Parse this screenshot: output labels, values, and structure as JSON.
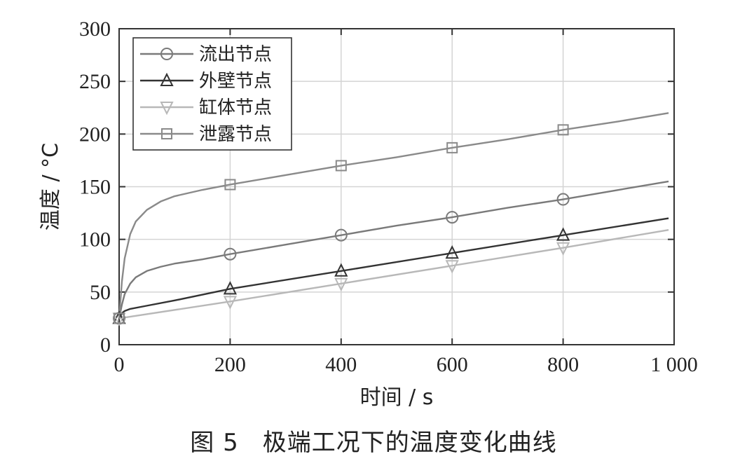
{
  "caption": {
    "figure_number": "图 5",
    "title": "极端工况下的温度变化曲线"
  },
  "chart_data": {
    "type": "line",
    "xlabel": "时间 / s",
    "ylabel": "温度 / °C",
    "xlim": [
      0,
      1000
    ],
    "ylim": [
      0,
      300
    ],
    "x_ticks": [
      0,
      200,
      400,
      600,
      800,
      1000
    ],
    "x_tick_labels": [
      "0",
      "200",
      "400",
      "600",
      "800",
      "1 000"
    ],
    "y_ticks": [
      0,
      50,
      100,
      150,
      200,
      250,
      300
    ],
    "y_tick_labels": [
      "0",
      "50",
      "100",
      "150",
      "200",
      "250",
      "300"
    ],
    "grid": true,
    "legend_position": "top-left",
    "series": [
      {
        "name": "流出节点",
        "marker": "circle",
        "color": "#7a7a7a",
        "x": [
          0,
          5,
          10,
          20,
          30,
          50,
          75,
          100,
          150,
          200,
          300,
          400,
          500,
          600,
          700,
          800,
          900,
          990
        ],
        "y": [
          25,
          38,
          48,
          58,
          64,
          70,
          74,
          77,
          81,
          86,
          95,
          104,
          113,
          121,
          130,
          138,
          147,
          155
        ]
      },
      {
        "name": "外壁节点",
        "marker": "triangle-up",
        "color": "#333333",
        "x": [
          0,
          5,
          10,
          20,
          50,
          100,
          200,
          400,
          600,
          800,
          990
        ],
        "y": [
          25,
          30,
          32,
          34,
          37,
          42,
          53,
          70,
          87,
          104,
          120
        ]
      },
      {
        "name": "缸体节点",
        "marker": "triangle-down",
        "color": "#b8b8b8",
        "x": [
          0,
          200,
          400,
          600,
          800,
          990
        ],
        "y": [
          25,
          41,
          58,
          75,
          92,
          109
        ]
      },
      {
        "name": "泄露节点",
        "marker": "square",
        "color": "#8a8a8a",
        "x": [
          0,
          5,
          10,
          20,
          30,
          50,
          75,
          100,
          150,
          200,
          300,
          400,
          500,
          600,
          700,
          800,
          900,
          990
        ],
        "y": [
          25,
          60,
          82,
          105,
          117,
          128,
          136,
          141,
          147,
          152,
          161,
          170,
          178,
          187,
          195,
          204,
          212,
          220
        ]
      }
    ],
    "markers_x": [
      0,
      200,
      400,
      600,
      800
    ]
  }
}
